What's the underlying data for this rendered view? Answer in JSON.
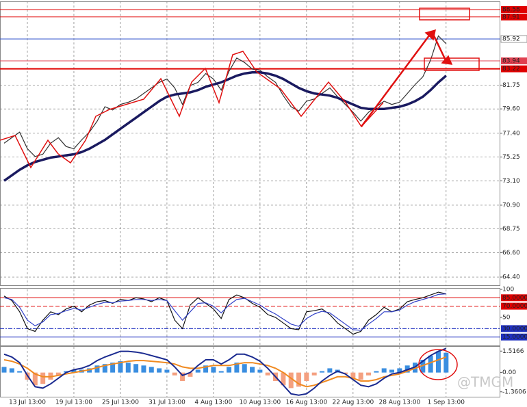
{
  "watermark": "@TMGM",
  "chart_data": [
    {
      "type": "line",
      "ylim": [
        63.6,
        89.32
      ],
      "yticks": [
        {
          "value": 64.4,
          "label": "64.40"
        },
        {
          "value": 66.6,
          "label": "66.60"
        },
        {
          "value": 68.75,
          "label": "68.75"
        },
        {
          "value": 70.9,
          "label": "70.90"
        },
        {
          "value": 73.1,
          "label": "73.10"
        },
        {
          "value": 75.25,
          "label": "75.25"
        },
        {
          "value": 77.4,
          "label": "77.40"
        },
        {
          "value": 79.6,
          "label": "79.60"
        },
        {
          "value": 81.75,
          "label": "81.75"
        }
      ],
      "levels": [
        {
          "value": 88.58,
          "label": "88.58",
          "color": "#e00000"
        },
        {
          "value": 87.91,
          "label": "87.91",
          "color": "#e00000"
        },
        {
          "value": 85.92,
          "label": "85.92",
          "color": "#3355cc"
        },
        {
          "value": 83.94,
          "label": "83.94",
          "color": "#e04050"
        },
        {
          "value": 83.22,
          "label": "83.22",
          "color": "#e00000"
        }
      ],
      "series": [
        {
          "color": "#333333",
          "values": [
            76.5,
            77,
            77.5,
            76,
            75.3,
            75.5,
            76.5,
            77,
            76.2,
            76,
            76.8,
            77.5,
            78.5,
            79.8,
            79.5,
            80,
            80.2,
            80.5,
            81,
            81.5,
            82,
            82.3,
            81.5,
            80,
            81.7,
            82,
            82.8,
            82.3,
            81.3,
            83,
            84.2,
            83.8,
            83.2,
            83.1,
            82.5,
            82,
            80.8,
            79.8,
            79.4,
            80.3,
            80.5,
            81,
            81.5,
            80.7,
            80,
            79.3,
            78.5,
            79.3,
            79.8,
            80.3,
            80,
            80.2,
            81,
            81.8,
            82.5,
            84,
            86.2,
            85.5
          ]
        },
        {
          "color": "#1a1a60",
          "values": [
            73.1,
            73.6,
            74.1,
            74.5,
            74.8,
            75,
            75.2,
            75.3,
            75.4,
            75.5,
            75.7,
            76,
            76.4,
            76.8,
            77.3,
            77.8,
            78.3,
            78.8,
            79.3,
            79.8,
            80.3,
            80.7,
            80.9,
            81,
            81.1,
            81.3,
            81.6,
            81.8,
            82,
            82.3,
            82.6,
            82.8,
            82.9,
            82.9,
            82.8,
            82.6,
            82.3,
            81.9,
            81.5,
            81.2,
            81,
            80.9,
            80.8,
            80.6,
            80.3,
            80,
            79.7,
            79.6,
            79.6,
            79.6,
            79.7,
            79.8,
            80,
            80.3,
            80.7,
            81.3,
            82,
            82.6
          ]
        }
      ]
    },
    {
      "type": "line",
      "ylim": [
        0,
        100
      ],
      "yticks": [
        100,
        50
      ],
      "levels": [
        {
          "value": 85,
          "label": "85.0000",
          "color": "#e00000",
          "dash": "none"
        },
        {
          "value": 70,
          "label": "70.0000",
          "color": "#e00000",
          "dash": "6 3"
        },
        {
          "value": 30,
          "label": "30.0000",
          "color": "#2030c0",
          "dash": "6 2 2 2"
        },
        {
          "value": 15,
          "label": "15.0000",
          "color": "#2030c0",
          "dash": "none"
        }
      ],
      "series": [
        {
          "color": "#111111",
          "values": [
            88,
            80,
            60,
            30,
            25,
            45,
            60,
            55,
            65,
            70,
            60,
            72,
            78,
            80,
            75,
            82,
            80,
            85,
            83,
            78,
            85,
            80,
            45,
            30,
            72,
            85,
            75,
            65,
            48,
            82,
            90,
            85,
            75,
            68,
            55,
            50,
            40,
            30,
            28,
            60,
            62,
            65,
            55,
            40,
            30,
            20,
            25,
            45,
            55,
            68,
            60,
            65,
            78,
            82,
            85,
            90,
            95,
            92
          ]
        },
        {
          "color": "#3040c8",
          "values": [
            85,
            82,
            68,
            45,
            35,
            42,
            55,
            57,
            62,
            66,
            63,
            68,
            73,
            77,
            76,
            79,
            80,
            82,
            82,
            80,
            82,
            80,
            62,
            45,
            60,
            75,
            76,
            70,
            58,
            72,
            82,
            84,
            78,
            72,
            63,
            56,
            47,
            38,
            34,
            48,
            56,
            61,
            58,
            48,
            38,
            28,
            27,
            38,
            48,
            60,
            60,
            63,
            72,
            78,
            82,
            86,
            91,
            92
          ]
        }
      ]
    },
    {
      "type": "histogram-lines",
      "ylim": [
        -1.71,
        1.82
      ],
      "yticks": [
        1.5166,
        {
          "value": 0,
          "label": "0.00"
        },
        -1.3606
      ],
      "categories": [
        null,
        null,
        null,
        "13 Jul 13:00",
        null,
        null,
        null,
        null,
        null,
        "19 Jul 13:00",
        null,
        null,
        null,
        null,
        null,
        "25 Jul 13:00",
        null,
        null,
        null,
        null,
        null,
        "31 Jul 13:00",
        null,
        null,
        null,
        null,
        null,
        "4 Aug 13:00",
        null,
        null,
        null,
        null,
        null,
        "10 Aug 13:00",
        null,
        null,
        null,
        null,
        null,
        "16 Aug 13:00",
        null,
        null,
        null,
        null,
        null,
        "22 Aug 13:00",
        null,
        null,
        null,
        null,
        null,
        "28 Aug 13:00",
        null,
        null,
        null,
        null,
        null,
        "1 Sep 13:00"
      ],
      "positive_color": "#3a8ee0",
      "negative_color": "#f4a080",
      "values": [
        0.4,
        0.3,
        0.1,
        -0.5,
        -0.9,
        -0.8,
        -0.5,
        -0.2,
        0.1,
        0.2,
        0.2,
        0.3,
        0.5,
        0.6,
        0.7,
        0.8,
        0.7,
        0.6,
        0.5,
        0.4,
        0.3,
        0.2,
        -0.2,
        -0.6,
        -0.3,
        0.2,
        0.5,
        0.4,
        0.1,
        0.4,
        0.7,
        0.6,
        0.4,
        0.2,
        -0.2,
        -0.6,
        -0.9,
        -1.1,
        -1,
        -0.6,
        -0.2,
        0.1,
        0.3,
        0.2,
        -0.1,
        -0.4,
        -0.5,
        -0.2,
        0.1,
        0.3,
        0.2,
        0.3,
        0.5,
        0.7,
        0.9,
        1.2,
        1.5,
        1.4
      ],
      "series": [
        {
          "color": "#f08a20",
          "values": [
            0.9,
            0.8,
            0.6,
            0.3,
            -0.1,
            -0.3,
            -0.3,
            -0.2,
            -0.1,
            0,
            0.1,
            0.2,
            0.35,
            0.5,
            0.6,
            0.7,
            0.8,
            0.85,
            0.85,
            0.8,
            0.75,
            0.7,
            0.6,
            0.4,
            0.3,
            0.3,
            0.4,
            0.5,
            0.5,
            0.5,
            0.6,
            0.7,
            0.7,
            0.6,
            0.5,
            0.3,
            0,
            -0.4,
            -0.8,
            -1,
            -0.9,
            -0.7,
            -0.5,
            -0.3,
            -0.3,
            -0.4,
            -0.6,
            -0.6,
            -0.5,
            -0.3,
            -0.2,
            -0.1,
            0.1,
            0.3,
            0.5,
            0.7,
            0.9,
            1.1
          ]
        },
        {
          "color": "#1a2a90",
          "values": [
            1.3,
            1.1,
            0.7,
            -0.2,
            -1,
            -1.1,
            -0.8,
            -0.4,
            0,
            0.2,
            0.3,
            0.5,
            0.85,
            1.1,
            1.3,
            1.5,
            1.5,
            1.45,
            1.35,
            1.2,
            1.05,
            0.9,
            0.4,
            -0.2,
            0,
            0.5,
            0.9,
            0.9,
            0.6,
            0.9,
            1.3,
            1.3,
            1.1,
            0.8,
            0.3,
            -0.3,
            -0.9,
            -1.5,
            -1.6,
            -1.5,
            -1.1,
            -0.6,
            -0.2,
            0.1,
            -0.1,
            -0.5,
            -0.9,
            -1,
            -0.8,
            -0.4,
            -0.1,
            0,
            0.2,
            0.4,
            0.8,
            1.2,
            1.5,
            1.7
          ]
        }
      ]
    }
  ]
}
